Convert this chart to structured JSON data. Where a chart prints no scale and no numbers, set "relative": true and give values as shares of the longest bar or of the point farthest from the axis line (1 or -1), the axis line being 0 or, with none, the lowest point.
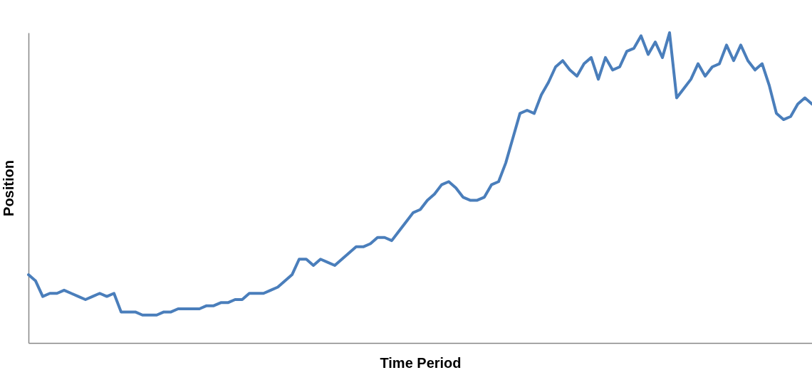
{
  "chart_data": {
    "type": "line",
    "xlabel": "Time Period",
    "ylabel": "Position",
    "relative": true,
    "grid": false,
    "legend": false,
    "tick_labels": false,
    "marker": "none",
    "line_style": "solid",
    "categories": [
      null,
      null,
      null,
      null,
      null,
      null,
      null,
      null,
      null,
      null,
      null,
      null,
      null,
      null,
      null,
      null,
      null,
      null,
      null,
      null,
      null,
      null,
      null,
      null,
      null,
      null,
      null,
      null,
      null,
      null,
      null,
      null,
      null,
      null,
      null,
      null,
      null,
      null,
      null,
      null,
      null,
      null,
      null,
      null,
      null,
      null,
      null,
      null,
      null,
      null,
      null,
      null,
      null,
      null,
      null,
      null,
      null,
      null,
      null,
      null,
      null,
      null,
      null,
      null,
      null,
      null,
      null,
      null,
      null,
      null,
      null,
      null,
      null,
      null,
      null,
      null,
      null,
      null,
      null,
      null,
      null,
      null,
      null,
      null,
      null,
      null,
      null,
      null,
      null,
      null,
      null,
      null,
      null,
      null,
      null,
      null,
      null,
      null,
      null,
      null,
      null,
      null,
      null,
      null,
      null,
      null,
      null,
      null,
      null,
      null,
      null
    ],
    "series": [
      {
        "color": "#4a7ebb",
        "values": [
          0.22,
          0.2,
          0.15,
          0.16,
          0.16,
          0.17,
          0.16,
          0.15,
          0.14,
          0.15,
          0.16,
          0.15,
          0.16,
          0.1,
          0.1,
          0.1,
          0.09,
          0.09,
          0.09,
          0.1,
          0.1,
          0.11,
          0.11,
          0.11,
          0.11,
          0.12,
          0.12,
          0.13,
          0.13,
          0.14,
          0.14,
          0.16,
          0.16,
          0.16,
          0.17,
          0.18,
          0.2,
          0.22,
          0.27,
          0.27,
          0.25,
          0.27,
          0.26,
          0.25,
          0.27,
          0.29,
          0.31,
          0.31,
          0.32,
          0.34,
          0.34,
          0.33,
          0.36,
          0.39,
          0.42,
          0.43,
          0.46,
          0.48,
          0.51,
          0.52,
          0.5,
          0.47,
          0.46,
          0.46,
          0.47,
          0.51,
          0.52,
          0.58,
          0.66,
          0.74,
          0.75,
          0.74,
          0.8,
          0.84,
          0.89,
          0.91,
          0.88,
          0.86,
          0.9,
          0.92,
          0.85,
          0.92,
          0.88,
          0.89,
          0.94,
          0.95,
          0.99,
          0.93,
          0.97,
          0.92,
          1,
          0.79,
          0.82,
          0.85,
          0.9,
          0.86,
          0.89,
          0.9,
          0.96,
          0.91,
          0.96,
          0.91,
          0.88,
          0.9,
          0.83,
          0.74,
          0.72,
          0.73,
          0.77,
          0.79,
          0.77
        ]
      }
    ]
  }
}
